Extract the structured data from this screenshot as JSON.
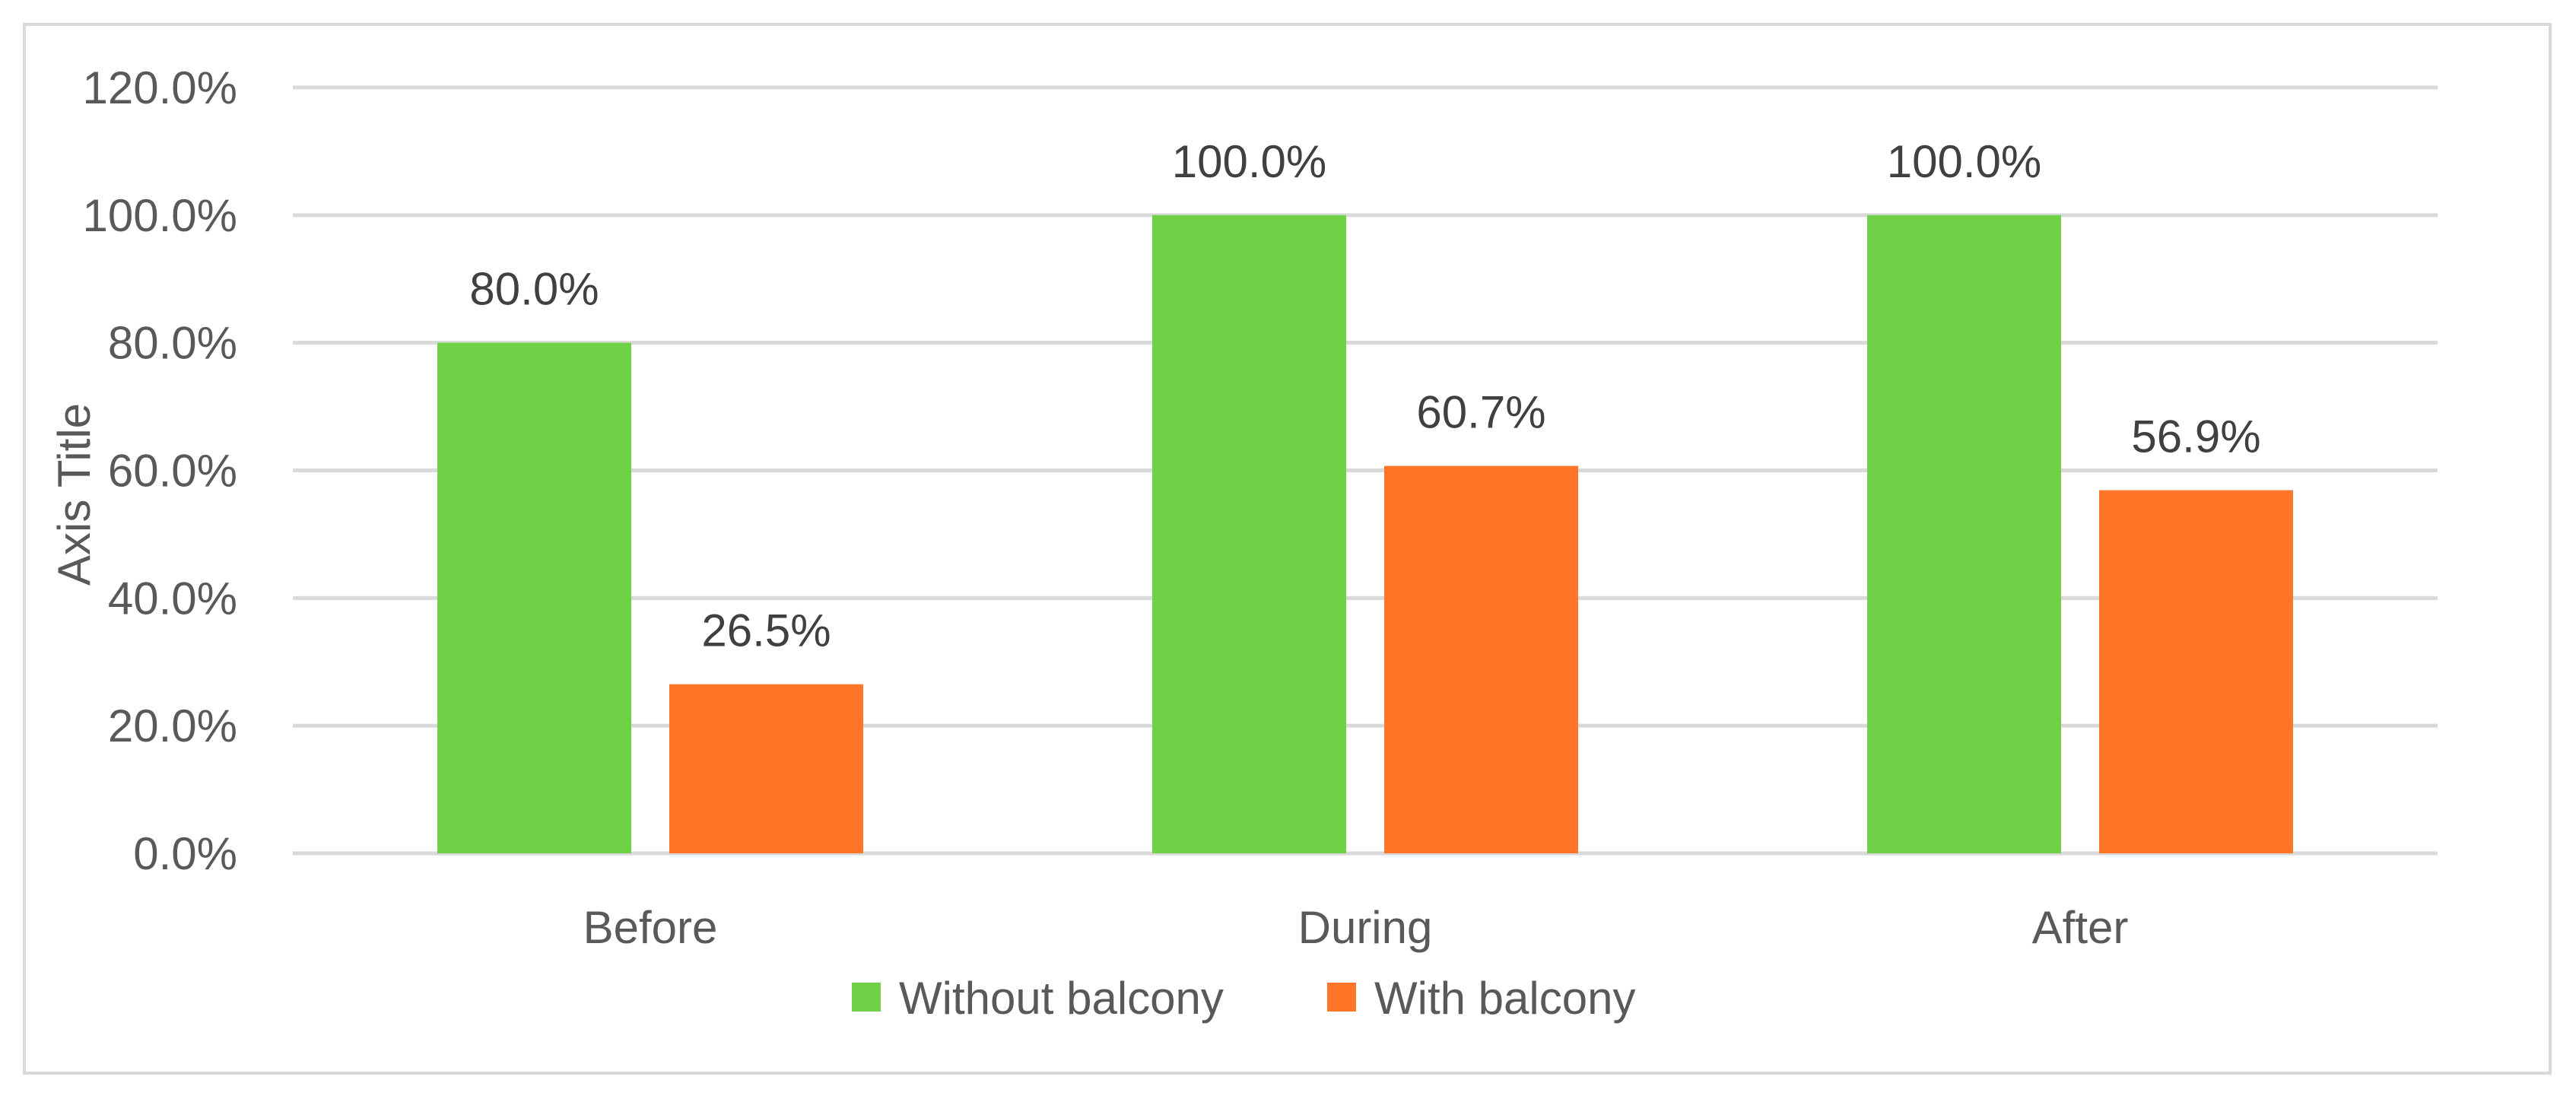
{
  "chart_data": {
    "type": "bar",
    "categories": [
      "Before",
      "During",
      "After"
    ],
    "series": [
      {
        "name": "Without balcony",
        "values": [
          80.0,
          100.0,
          100.0
        ],
        "color": "#6fd145",
        "labels": [
          "80.0%",
          "100.0%",
          "100.0%"
        ]
      },
      {
        "name": "With balcony",
        "values": [
          26.5,
          60.7,
          56.9
        ],
        "color": "#ff7629",
        "labels": [
          "26.5%",
          "60.7%",
          "56.9%"
        ]
      }
    ],
    "title": "",
    "xlabel": "",
    "ylabel": "Axis Title",
    "ylim": [
      0,
      120
    ],
    "yticks": [
      0,
      20,
      40,
      60,
      80,
      100,
      120
    ],
    "ytick_labels": [
      "0.0%",
      "20.0%",
      "40.0%",
      "60.0%",
      "80.0%",
      "100.0%",
      "120.0%"
    ],
    "grid": true,
    "legend_position": "bottom"
  }
}
